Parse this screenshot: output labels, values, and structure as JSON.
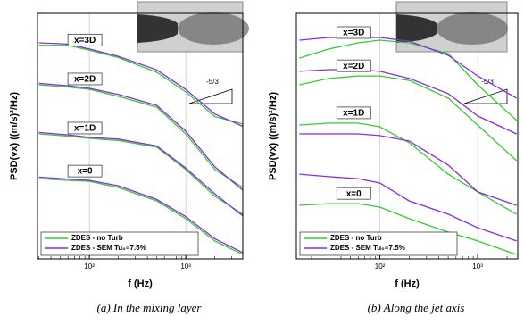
{
  "chart_data": [
    {
      "type": "line",
      "caption": "(a)    In the mixing layer",
      "xlabel": "f (Hz)",
      "ylabel": "PSD(vx) ((m/s)²/Hz)",
      "xscale": "log",
      "xlim": [
        29,
        3900
      ],
      "ylim": [
        0,
        10
      ],
      "xticks": [
        {
          "value": 100,
          "label": "10²"
        },
        {
          "value": 1000,
          "label": "10³"
        }
      ],
      "x": [
        30,
        60,
        100,
        200,
        500,
        1000,
        2000,
        3900
      ],
      "stations": [
        "x=3D",
        "x=2D",
        "x=1D",
        "x=0"
      ],
      "slope_label": "-5/3",
      "series": [
        {
          "name": "ZDES - no Turb",
          "color": "#33cc33",
          "curves": [
            [
              8.7,
              8.7,
              8.5,
              8.2,
              7.6,
              6.8,
              5.8,
              5.5
            ],
            [
              7.09,
              7.0,
              6.91,
              6.62,
              6.18,
              5.09,
              3.64,
              2.91
            ],
            [
              5.09,
              5.0,
              4.91,
              4.82,
              4.55,
              3.64,
              2.55,
              1.82
            ],
            [
              3.27,
              3.2,
              3.16,
              2.91,
              2.36,
              1.64,
              0.73,
              0.18
            ]
          ]
        },
        {
          "name": "ZDES - SEM Tu₀=7.5%",
          "color": "#8a2be2",
          "curves": [
            [
              8.8,
              8.75,
              8.55,
              8.25,
              7.7,
              6.9,
              5.9,
              5.4
            ],
            [
              7.15,
              7.05,
              6.95,
              6.7,
              6.25,
              5.2,
              3.75,
              2.8
            ],
            [
              5.15,
              5.05,
              4.95,
              4.88,
              4.6,
              3.7,
              2.65,
              1.75
            ],
            [
              3.33,
              3.25,
              3.2,
              2.98,
              2.42,
              1.72,
              0.82,
              0.25
            ]
          ]
        }
      ]
    },
    {
      "type": "line",
      "caption": "(b)    Along the jet axis",
      "xlabel": "f (Hz)",
      "ylabel": "PSD(vx) ((m/s)²/Hz)",
      "xscale": "log",
      "xlim": [
        14,
        2570
      ],
      "ylim": [
        0,
        10
      ],
      "xticks": [
        {
          "value": 100,
          "label": "10²"
        },
        {
          "value": 1000,
          "label": "10³"
        }
      ],
      "x": [
        15,
        30,
        60,
        100,
        200,
        500,
        1000,
        2500
      ],
      "stations": [
        "x=3D",
        "x=2D",
        "x=1D",
        "x=0"
      ],
      "slope_label": "-5/3",
      "series": [
        {
          "name": "ZDES - no Turb",
          "color": "#33cc33",
          "curves": [
            [
              8.18,
              8.55,
              8.8,
              8.91,
              8.8,
              8.36,
              7.09,
              5.64
            ],
            [
              7.09,
              7.35,
              7.45,
              7.45,
              7.27,
              6.55,
              5.45,
              4.0
            ],
            [
              5.45,
              5.53,
              5.53,
              5.38,
              4.73,
              3.45,
              2.73,
              1.82
            ],
            [
              2.18,
              2.25,
              2.25,
              2.11,
              1.64,
              1.09,
              0.73,
              0.18
            ]
          ]
        },
        {
          "name": "ZDES - SEM Tu₀=7.5%",
          "color": "#8a2be2",
          "curves": [
            [
              8.91,
              9.02,
              9.02,
              9.02,
              8.87,
              8.29,
              7.45,
              6.55
            ],
            [
              7.64,
              7.71,
              7.71,
              7.64,
              7.35,
              6.73,
              5.82,
              5.09
            ],
            [
              5.09,
              5.09,
              5.09,
              5.02,
              4.8,
              3.82,
              2.73,
              2.18
            ],
            [
              3.45,
              3.35,
              3.27,
              3.09,
              2.36,
              1.82,
              1.27,
              0.73
            ]
          ]
        }
      ]
    }
  ]
}
